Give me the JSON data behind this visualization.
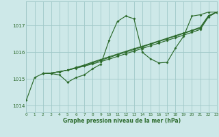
{
  "title": "Graphe pression niveau de la mer (hPa)",
  "bg": "#cde8e8",
  "grid_color": "#a0c8c8",
  "lc": "#2d6b2d",
  "xlim": [
    0,
    23
  ],
  "ylim": [
    1013.75,
    1017.9
  ],
  "yticks": [
    1014,
    1015,
    1016,
    1017
  ],
  "xticks": [
    0,
    1,
    2,
    3,
    4,
    5,
    6,
    7,
    8,
    9,
    10,
    11,
    12,
    13,
    14,
    15,
    16,
    17,
    18,
    19,
    20,
    21,
    22,
    23
  ],
  "line_main": [
    1014.2,
    1015.05,
    1015.2,
    1015.2,
    1015.15,
    1014.88,
    1015.05,
    1015.15,
    1015.38,
    1015.55,
    1016.45,
    1017.15,
    1017.35,
    1017.25,
    1016.0,
    1015.75,
    1015.6,
    1015.62,
    1016.15,
    1016.6,
    1017.35,
    1017.4,
    1017.5,
    1017.5
  ],
  "smooth1_x": [
    2,
    3,
    4,
    5,
    6,
    7,
    8,
    9,
    10,
    11,
    12,
    13,
    14,
    15,
    16,
    17,
    18,
    19,
    20,
    21,
    22,
    23
  ],
  "smooth1_y": [
    1015.2,
    1015.22,
    1015.27,
    1015.33,
    1015.43,
    1015.52,
    1015.63,
    1015.73,
    1015.83,
    1015.93,
    1016.03,
    1016.13,
    1016.22,
    1016.32,
    1016.42,
    1016.52,
    1016.62,
    1016.72,
    1016.82,
    1016.93,
    1017.37,
    1017.5
  ],
  "smooth2_x": [
    2,
    3,
    4,
    5,
    6,
    7,
    8,
    9,
    10,
    11,
    12,
    13,
    14,
    15,
    16,
    17,
    18,
    19,
    20,
    21,
    22,
    23
  ],
  "smooth2_y": [
    1015.2,
    1015.22,
    1015.27,
    1015.33,
    1015.41,
    1015.5,
    1015.6,
    1015.7,
    1015.8,
    1015.9,
    1016.0,
    1016.1,
    1016.2,
    1016.3,
    1016.4,
    1016.5,
    1016.6,
    1016.7,
    1016.8,
    1016.9,
    1017.35,
    1017.5
  ],
  "smooth3_x": [
    2,
    3,
    4,
    5,
    6,
    7,
    8,
    9,
    10,
    11,
    12,
    13,
    14,
    15,
    16,
    17,
    18,
    19,
    20,
    21,
    22,
    23
  ],
  "smooth3_y": [
    1015.2,
    1015.22,
    1015.27,
    1015.33,
    1015.4,
    1015.48,
    1015.56,
    1015.65,
    1015.74,
    1015.84,
    1015.94,
    1016.04,
    1016.14,
    1016.24,
    1016.34,
    1016.44,
    1016.54,
    1016.64,
    1016.74,
    1016.85,
    1017.32,
    1017.5
  ]
}
